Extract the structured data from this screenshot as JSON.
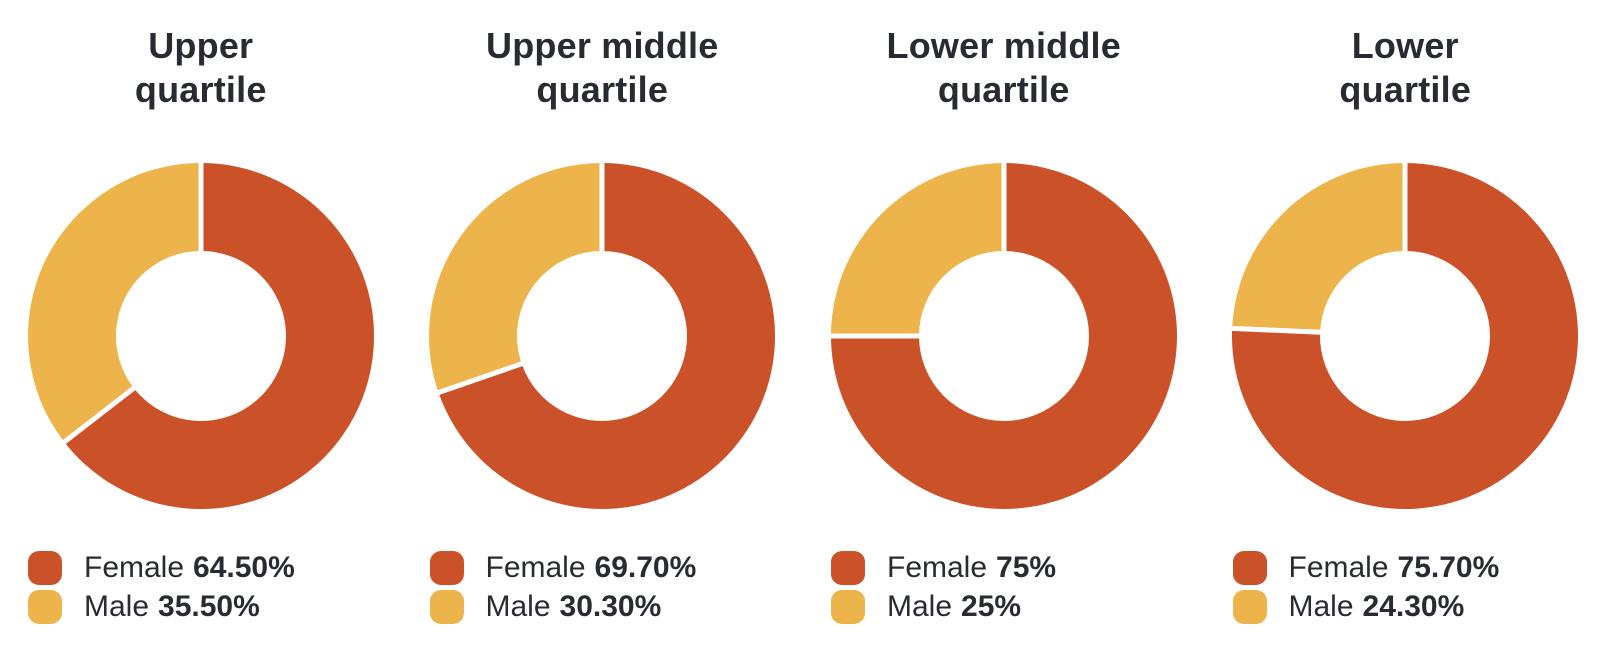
{
  "page": {
    "background_color": "#FFFFFF",
    "text_color": "#282B31",
    "separator_color": "#FFFFFF"
  },
  "chart_data": [
    {
      "type": "pie",
      "donut": true,
      "title": "Upper quartile",
      "title_display": "Upper\nquartile",
      "labels": [
        "Female",
        "Male"
      ],
      "values": [
        64.5,
        35.5
      ],
      "display_values": [
        "64.50%",
        "35.50%"
      ],
      "unit": "%",
      "colors": [
        "#CB5128",
        "#EDB44B"
      ],
      "start_angle_deg": 0,
      "direction": "clockwise",
      "legend_position": "bottom-left"
    },
    {
      "type": "pie",
      "donut": true,
      "title": "Upper middle quartile",
      "title_display": "Upper middle\nquartile",
      "labels": [
        "Female",
        "Male"
      ],
      "values": [
        69.7,
        30.3
      ],
      "display_values": [
        "69.70%",
        "30.30%"
      ],
      "unit": "%",
      "colors": [
        "#CB5128",
        "#EDB44B"
      ],
      "start_angle_deg": 0,
      "direction": "clockwise",
      "legend_position": "bottom-left"
    },
    {
      "type": "pie",
      "donut": true,
      "title": "Lower middle quartile",
      "title_display": "Lower middle\nquartile",
      "labels": [
        "Female",
        "Male"
      ],
      "values": [
        75,
        25
      ],
      "display_values": [
        "75%",
        "25%"
      ],
      "unit": "%",
      "colors": [
        "#CB5128",
        "#EDB44B"
      ],
      "start_angle_deg": 0,
      "direction": "clockwise",
      "legend_position": "bottom-left"
    },
    {
      "type": "pie",
      "donut": true,
      "title": "Lower quartile",
      "title_display": "Lower\nquartile",
      "labels": [
        "Female",
        "Male"
      ],
      "values": [
        75.7,
        24.3
      ],
      "display_values": [
        "75.70%",
        "24.30%"
      ],
      "unit": "%",
      "colors": [
        "#CB5128",
        "#EDB44B"
      ],
      "start_angle_deg": 0,
      "direction": "clockwise",
      "legend_position": "bottom-left"
    }
  ],
  "donut_geometry": {
    "outer_radius": 173,
    "inner_radius": 85,
    "separator_width": 5
  }
}
